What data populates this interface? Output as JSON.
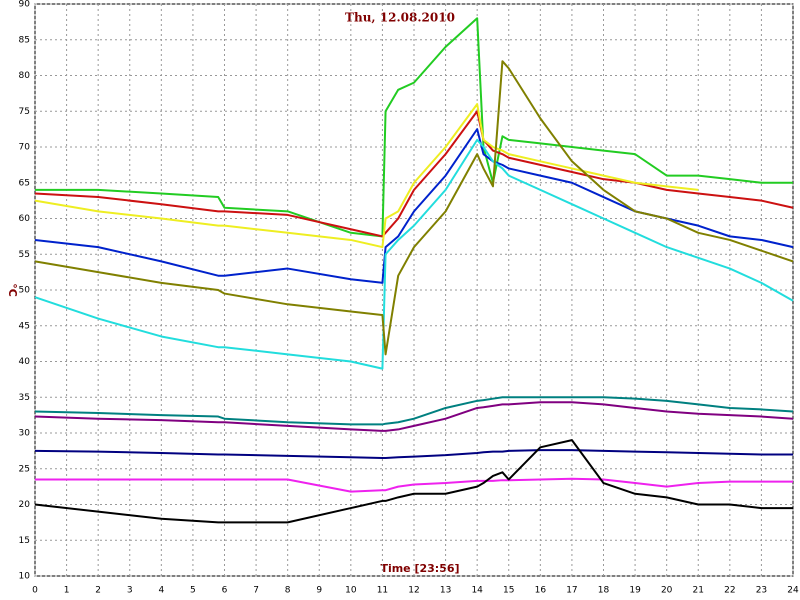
{
  "chart_data": {
    "type": "line",
    "title": "Thu, 12.08.2010",
    "x_label": "Time [23:56]",
    "y_label": "°C",
    "x": [
      0,
      2,
      4,
      5.8,
      6,
      8,
      10,
      11,
      11.1,
      11.5,
      12,
      13,
      14,
      14.2,
      14.5,
      14.8,
      15,
      16,
      17,
      18,
      19,
      20,
      21,
      22,
      23,
      24
    ],
    "xlim": [
      0,
      24
    ],
    "xticks": [
      0,
      1,
      2,
      3,
      4,
      5,
      6,
      7,
      8,
      9,
      10,
      11,
      12,
      13,
      14,
      15,
      16,
      17,
      18,
      19,
      20,
      21,
      22,
      23,
      24
    ],
    "ylim": [
      10,
      90
    ],
    "yticks": [
      10,
      15,
      20,
      25,
      30,
      35,
      40,
      45,
      50,
      55,
      60,
      65,
      70,
      75,
      80,
      85,
      90
    ],
    "grid": true,
    "series": [
      {
        "color": "#22cc22",
        "values": [
          64,
          64,
          63.5,
          63,
          61.5,
          61,
          58,
          57.5,
          75,
          78,
          79,
          84,
          88,
          70,
          65,
          71.5,
          71,
          70.5,
          70,
          69.5,
          69,
          66,
          66,
          65.5,
          65,
          65
        ]
      },
      {
        "color": "#cc1111",
        "values": [
          63.5,
          63,
          62,
          61,
          61,
          60.5,
          58.5,
          57.5,
          58,
          60,
          64,
          69,
          75,
          71,
          69.5,
          69,
          68.5,
          67.5,
          66.5,
          65.5,
          65,
          64,
          63.5,
          63,
          62.5,
          61.5
        ]
      },
      {
        "color": "#eeee22",
        "values": [
          62.5,
          61,
          60,
          59,
          59,
          58,
          57,
          56,
          60,
          61,
          65,
          70,
          76,
          71,
          70,
          69.5,
          69,
          68,
          67,
          66,
          65,
          64.5,
          64,
          null,
          null,
          null
        ]
      },
      {
        "color": "#0022cc",
        "values": [
          57,
          56,
          54,
          52,
          52,
          53,
          51.5,
          51,
          56,
          57.5,
          61,
          66,
          72.5,
          69,
          68,
          67.5,
          67,
          66,
          65,
          63,
          61,
          60,
          59,
          57.5,
          57,
          56
        ]
      },
      {
        "color": "#22dddd",
        "values": [
          49,
          46,
          43.5,
          42,
          42,
          41,
          40,
          39,
          55,
          57,
          59,
          64,
          71,
          70,
          68,
          67,
          66,
          64,
          62,
          60,
          58,
          56,
          54.5,
          53,
          51,
          48.5
        ]
      },
      {
        "color": "#808000",
        "values": [
          54,
          52.5,
          51,
          50,
          49.5,
          48,
          47,
          46.5,
          41,
          52,
          56,
          61,
          69,
          67,
          64.5,
          82,
          81,
          74,
          68,
          64,
          61,
          60,
          58,
          57,
          55.5,
          54
        ]
      },
      {
        "color": "#008080",
        "values": [
          33,
          32.8,
          32.5,
          32.3,
          32,
          31.5,
          31.2,
          31.2,
          31.3,
          31.5,
          32,
          33.5,
          34.5,
          34.6,
          34.8,
          35,
          35,
          35,
          35,
          35,
          34.8,
          34.5,
          34,
          33.5,
          33.3,
          33
        ]
      },
      {
        "color": "#800080",
        "values": [
          32.3,
          32,
          31.8,
          31.5,
          31.5,
          31,
          30.5,
          30.3,
          30.3,
          30.5,
          31,
          32,
          33.5,
          33.6,
          33.8,
          34,
          34,
          34.3,
          34.3,
          34,
          33.5,
          33,
          32.7,
          32.5,
          32.3,
          32
        ]
      },
      {
        "color": "#000080",
        "values": [
          27.5,
          27.4,
          27.2,
          27,
          27,
          26.8,
          26.6,
          26.5,
          26.5,
          26.6,
          26.7,
          26.9,
          27.2,
          27.3,
          27.4,
          27.4,
          27.5,
          27.6,
          27.6,
          27.5,
          27.4,
          27.3,
          27.2,
          27.1,
          27,
          27
        ]
      },
      {
        "color": "#ee22ee",
        "values": [
          23.5,
          23.5,
          23.5,
          23.5,
          23.5,
          23.5,
          21.8,
          22,
          22,
          22.5,
          22.8,
          23,
          23.3,
          23.3,
          23.3,
          23.4,
          23.4,
          23.5,
          23.6,
          23.5,
          23,
          22.5,
          23,
          23.2,
          23.2,
          23.2
        ]
      },
      {
        "color": "#000000",
        "values": [
          20,
          19,
          18,
          17.5,
          17.5,
          17.5,
          19.5,
          20.5,
          20.5,
          21,
          21.5,
          21.5,
          22.5,
          23,
          24,
          24.5,
          23.5,
          28,
          29,
          23,
          21.5,
          21,
          20,
          20,
          19.5,
          19.5
        ]
      }
    ]
  }
}
